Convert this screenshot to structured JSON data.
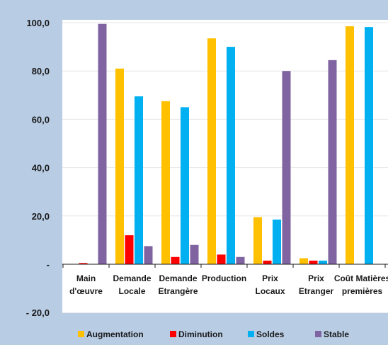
{
  "chart_data": {
    "type": "bar",
    "title": "",
    "xlabel": "",
    "ylabel": "",
    "ylim": [
      -20,
      100
    ],
    "yticks": [
      {
        "value": 100,
        "label": "100,0"
      },
      {
        "value": 80,
        "label": "80,0"
      },
      {
        "value": 60,
        "label": "60,0"
      },
      {
        "value": 40,
        "label": "40,0"
      },
      {
        "value": 20,
        "label": "20,0"
      },
      {
        "value": 0,
        "label": "-"
      },
      {
        "value": -20,
        "label": "- 20,0"
      }
    ],
    "categories": [
      [
        "Main",
        "d'œuvre"
      ],
      [
        "Demande",
        "Locale"
      ],
      [
        "Demande",
        "Etrangère"
      ],
      [
        "Production"
      ],
      [
        "Prix",
        "Locaux"
      ],
      [
        "Prix",
        "Etranger"
      ],
      [
        "Coût Matières",
        "premières"
      ]
    ],
    "series": [
      {
        "name": "Augmentation",
        "color": "#FFC000",
        "values": [
          0,
          81,
          67.5,
          93.5,
          19.5,
          2.5,
          98.5
        ]
      },
      {
        "name": "Diminution",
        "color": "#FF0000",
        "values": [
          0.5,
          12,
          3,
          4,
          1.5,
          1.5,
          0
        ]
      },
      {
        "name": "Soldes",
        "color": "#00B0F0",
        "values": [
          0,
          69.5,
          65,
          90,
          18.5,
          1.5,
          98.2
        ]
      },
      {
        "name": "Stable",
        "color": "#8064A2",
        "values": [
          99.5,
          7.5,
          8,
          3,
          80,
          84.5,
          0
        ]
      }
    ],
    "grid": true,
    "legend": "bottom",
    "colors": {
      "frame": "#B8CCE4",
      "plot_bg": "#FFFFFF",
      "grid": "#E6E6E6",
      "axis": "#1a1a1a"
    }
  }
}
